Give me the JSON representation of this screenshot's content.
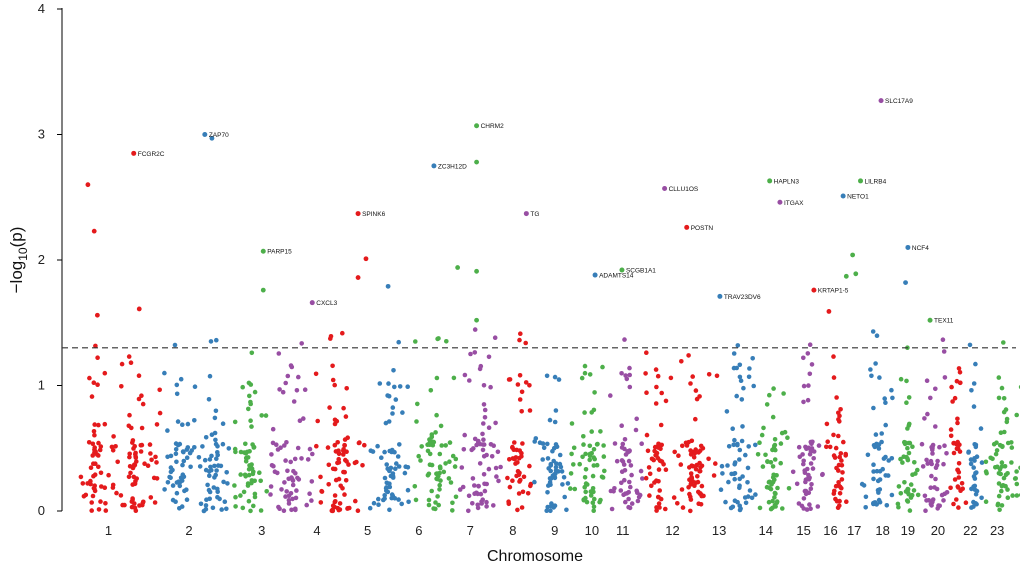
{
  "chart_data": {
    "type": "scatter",
    "subtype": "manhattan",
    "title": "",
    "xlabel": "Chromosome",
    "ylabel": "−log10(p)",
    "ylabel_main": "−log",
    "ylabel_sub": "10",
    "ylabel_tail": "(p)",
    "ylim": [
      0,
      4
    ],
    "yticks": [
      "0",
      "1",
      "2",
      "3",
      "4"
    ],
    "threshold": 1.3,
    "threshold_style": "dashed",
    "grid": false,
    "colors": [
      "#e41a1c",
      "#377eb8",
      "#4daf4a",
      "#984ea3"
    ],
    "chromosomes": [
      "1",
      "2",
      "3",
      "4",
      "5",
      "6",
      "7",
      "8",
      "9",
      "10",
      "11",
      "12",
      "13",
      "14",
      "15",
      "16",
      "17",
      "18",
      "19",
      "20",
      "22",
      "23"
    ],
    "chrom_centers": [
      0.36,
      1.38,
      2.3,
      3.0,
      3.64,
      4.29,
      4.94,
      5.48,
      6.01,
      6.48,
      6.87,
      7.5,
      8.09,
      8.68,
      9.16,
      9.5,
      9.8,
      10.16,
      10.48,
      10.86,
      11.27,
      11.61
    ],
    "color_bands": [
      {
        "color": 0,
        "from": 0.0,
        "to": 0.38
      },
      {
        "color": 0,
        "from": 0.4,
        "to": 1.02
      },
      {
        "color": 1,
        "from": 1.06,
        "to": 1.46
      },
      {
        "color": 1,
        "from": 1.48,
        "to": 1.9
      },
      {
        "color": 2,
        "from": 1.93,
        "to": 2.38
      },
      {
        "color": 3,
        "from": 2.41,
        "to": 2.95
      },
      {
        "color": 0,
        "from": 2.98,
        "to": 3.62
      },
      {
        "color": 1,
        "from": 3.66,
        "to": 4.18
      },
      {
        "color": 2,
        "from": 4.23,
        "to": 4.76
      },
      {
        "color": 3,
        "from": 4.78,
        "to": 5.35
      },
      {
        "color": 0,
        "from": 5.38,
        "to": 5.72
      },
      {
        "color": 1,
        "from": 5.75,
        "to": 6.18
      },
      {
        "color": 2,
        "from": 6.2,
        "to": 6.68
      },
      {
        "color": 3,
        "from": 6.7,
        "to": 7.12
      },
      {
        "color": 0,
        "from": 7.15,
        "to": 7.48
      },
      {
        "color": 0,
        "from": 7.5,
        "to": 8.08
      },
      {
        "color": 1,
        "from": 8.1,
        "to": 8.55
      },
      {
        "color": 2,
        "from": 8.58,
        "to": 8.98
      },
      {
        "color": 3,
        "from": 9.0,
        "to": 9.42
      },
      {
        "color": 0,
        "from": 9.44,
        "to": 9.72
      },
      {
        "color": 1,
        "from": 9.9,
        "to": 10.3
      },
      {
        "color": 2,
        "from": 10.33,
        "to": 10.62
      },
      {
        "color": 3,
        "from": 10.65,
        "to": 10.98
      },
      {
        "color": 0,
        "from": 11.0,
        "to": 11.22
      },
      {
        "color": 1,
        "from": 11.24,
        "to": 11.42
      },
      {
        "color": 2,
        "from": 11.44,
        "to": 11.92
      }
    ],
    "annotated": [
      {
        "gene": "FCGR2C",
        "x": 0.68,
        "y": 2.85,
        "color": 0
      },
      {
        "gene": "ZAP70",
        "x": 1.58,
        "y": 3.0,
        "color": 1
      },
      {
        "gene": "PARP15",
        "x": 2.32,
        "y": 2.07,
        "color": 2
      },
      {
        "gene": "CXCL3",
        "x": 2.94,
        "y": 1.66,
        "color": 3
      },
      {
        "gene": "SPINK6",
        "x": 3.52,
        "y": 2.37,
        "color": 0
      },
      {
        "gene": "ZC3H12D",
        "x": 4.48,
        "y": 2.75,
        "color": 1
      },
      {
        "gene": "CHRM2",
        "x": 5.02,
        "y": 3.07,
        "color": 2
      },
      {
        "gene": "TG",
        "x": 5.65,
        "y": 2.37,
        "color": 3
      },
      {
        "gene": "ADAMTS14",
        "x": 6.52,
        "y": 1.88,
        "color": 1
      },
      {
        "gene": "SCGB1A1",
        "x": 6.86,
        "y": 1.92,
        "color": 2
      },
      {
        "gene": "CLLU1OS",
        "x": 7.4,
        "y": 2.57,
        "color": 3
      },
      {
        "gene": "POSTN",
        "x": 7.68,
        "y": 2.26,
        "color": 0
      },
      {
        "gene": "TRAV23DV6",
        "x": 8.1,
        "y": 1.71,
        "color": 1
      },
      {
        "gene": "HAPLN3",
        "x": 8.73,
        "y": 2.63,
        "color": 2
      },
      {
        "gene": "ITGAX",
        "x": 8.86,
        "y": 2.46,
        "color": 3
      },
      {
        "gene": "KRTAP1-5",
        "x": 9.29,
        "y": 1.76,
        "color": 0
      },
      {
        "gene": "NETO1",
        "x": 9.66,
        "y": 2.51,
        "color": 1
      },
      {
        "gene": "LILRB4",
        "x": 9.88,
        "y": 2.63,
        "color": 2
      },
      {
        "gene": "SLC17A9",
        "x": 10.14,
        "y": 3.27,
        "color": 3
      },
      {
        "gene": "NCF4",
        "x": 10.48,
        "y": 2.1,
        "color": 1
      },
      {
        "gene": "TEX11",
        "x": 10.76,
        "y": 1.52,
        "color": 2
      }
    ],
    "notable_points": [
      {
        "x": 0.1,
        "y": 2.6,
        "color": 0
      },
      {
        "x": 0.18,
        "y": 2.23,
        "color": 0
      },
      {
        "x": 0.22,
        "y": 1.56,
        "color": 0
      },
      {
        "x": 0.75,
        "y": 1.61,
        "color": 0
      },
      {
        "x": 1.67,
        "y": 2.97,
        "color": 1
      },
      {
        "x": 2.32,
        "y": 1.76,
        "color": 2
      },
      {
        "x": 3.52,
        "y": 1.86,
        "color": 0
      },
      {
        "x": 3.62,
        "y": 2.01,
        "color": 0
      },
      {
        "x": 3.9,
        "y": 1.79,
        "color": 1
      },
      {
        "x": 5.02,
        "y": 2.78,
        "color": 2
      },
      {
        "x": 4.78,
        "y": 1.94,
        "color": 2
      },
      {
        "x": 5.02,
        "y": 1.91,
        "color": 2
      },
      {
        "x": 5.02,
        "y": 1.52,
        "color": 2
      },
      {
        "x": 10.45,
        "y": 1.82,
        "color": 1
      },
      {
        "x": 9.78,
        "y": 2.04,
        "color": 2
      },
      {
        "x": 9.7,
        "y": 1.87,
        "color": 2
      },
      {
        "x": 9.82,
        "y": 1.89,
        "color": 2
      },
      {
        "x": 9.48,
        "y": 1.59,
        "color": 0
      }
    ]
  }
}
